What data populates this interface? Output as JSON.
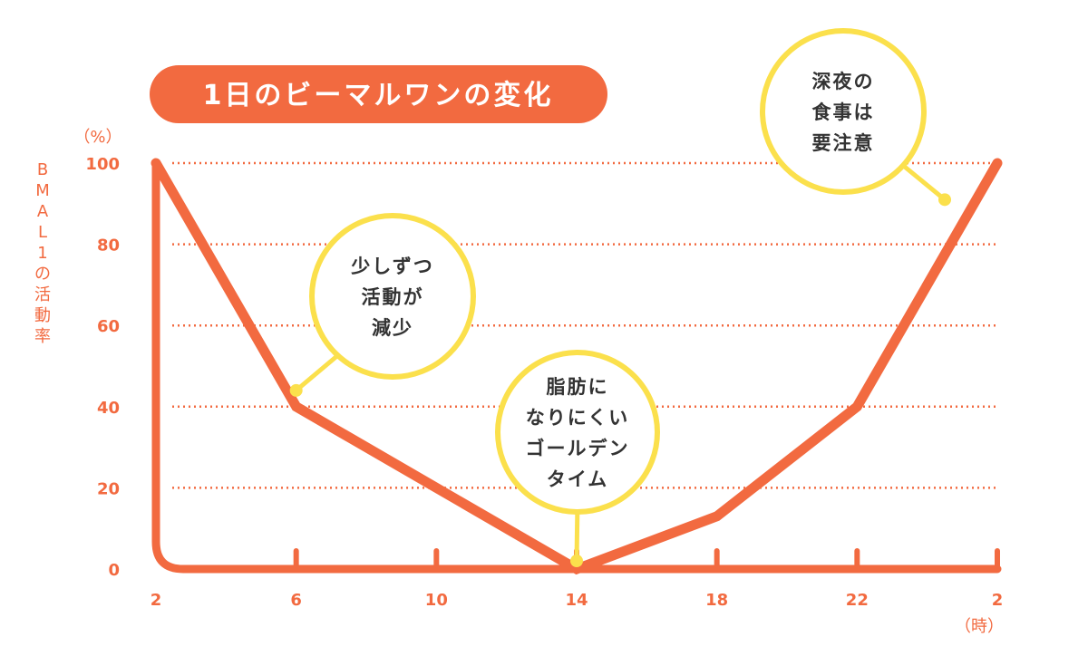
{
  "title": "1日のビーマルワンの変化",
  "colors": {
    "accent": "#f26a40",
    "highlight": "#fbe04c",
    "text": "#333333"
  },
  "chart_data": {
    "type": "line",
    "ylabel": "BMAL1の活動率",
    "ylabel_chars": [
      "B",
      "M",
      "A",
      "L",
      "1",
      "の",
      "活",
      "動",
      "率"
    ],
    "y_unit": "（%）",
    "x_unit": "（時）",
    "ylim": [
      0,
      100
    ],
    "y_ticks": [
      "100",
      "80",
      "60",
      "40",
      "20",
      "0"
    ],
    "x_ticks": [
      "2",
      "6",
      "10",
      "14",
      "18",
      "22",
      "2"
    ],
    "grid": "horizontal dotted",
    "series": [
      {
        "x": [
          2,
          6,
          14,
          18,
          22,
          26
        ],
        "y": [
          100,
          40,
          0,
          13,
          40,
          100
        ]
      }
    ],
    "annotations": [
      {
        "lines": [
          "少しずつ",
          "活動が",
          "減少"
        ],
        "x": 6,
        "y": 44
      },
      {
        "lines": [
          "脂肪に",
          "なりにくい",
          "ゴールデン",
          "タイム"
        ],
        "x": 14,
        "y": 2
      },
      {
        "lines": [
          "深夜の",
          "食事は",
          "要注意"
        ],
        "x": 24.5,
        "y": 91
      }
    ]
  }
}
